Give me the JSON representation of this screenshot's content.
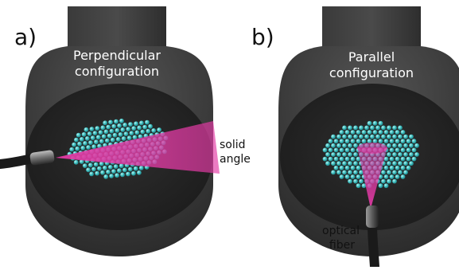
{
  "panels": [
    {
      "letter": "a)",
      "title_line1": "Perpendicular",
      "title_line2": "configuration",
      "beam_label_line1": "solid",
      "beam_label_line2": "angle"
    },
    {
      "letter": "b)",
      "title_line1": "Parallel",
      "title_line2": "configuration",
      "fiber_label_line1": "optical",
      "fiber_label_line2": "fiber"
    }
  ],
  "colors": {
    "chamber_body": "#3e3e3e",
    "chamber_face": "#262626",
    "atoms": "#3fc1c1",
    "beam": "#e23aa5",
    "text_on_dark": "#ffffff",
    "text_on_light": "#111111"
  }
}
